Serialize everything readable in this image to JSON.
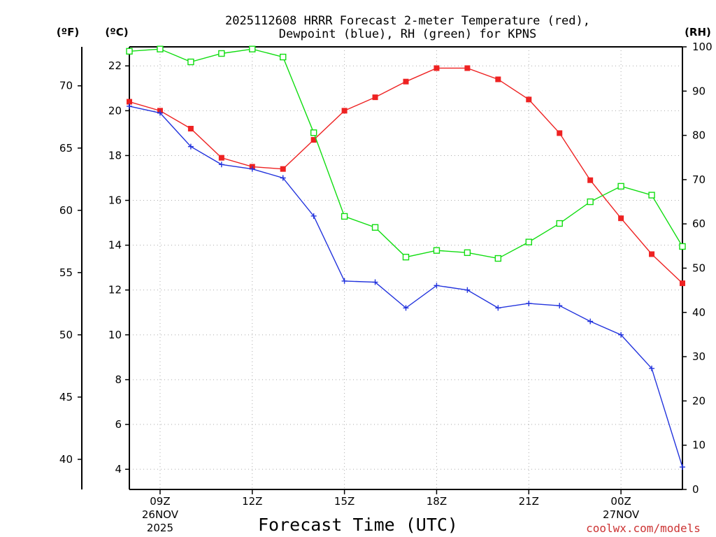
{
  "chart_data": {
    "type": "line",
    "title_line1": "2025112608 HRRR Forecast 2-meter Temperature (red),",
    "title_line2": "Dewpoint (blue), RH (green) for KPNS",
    "xlabel": "Forecast Time (UTC)",
    "credit": "coolwx.com/models",
    "units": {
      "fahrenheit": "(ºF)",
      "celsius": "(ºC)",
      "rh": "(RH)"
    },
    "x": [
      8,
      9,
      10,
      11,
      12,
      13,
      14,
      15,
      16,
      17,
      18,
      19,
      20,
      21,
      22,
      23,
      24,
      25,
      26
    ],
    "xlim": [
      8,
      26
    ],
    "x_ticks": [
      {
        "x": 9,
        "label": "09Z",
        "sub1": "26NOV",
        "sub2": "2025"
      },
      {
        "x": 12,
        "label": "12Z",
        "sub1": "",
        "sub2": ""
      },
      {
        "x": 15,
        "label": "15Z",
        "sub1": "",
        "sub2": ""
      },
      {
        "x": 18,
        "label": "18Z",
        "sub1": "",
        "sub2": ""
      },
      {
        "x": 21,
        "label": "21Z",
        "sub1": "",
        "sub2": ""
      },
      {
        "x": 24,
        "label": "00Z",
        "sub1": "27NOV",
        "sub2": ""
      }
    ],
    "ylim_c": [
      3.1,
      22.85
    ],
    "y_ticks_c": [
      4,
      6,
      8,
      10,
      12,
      14,
      16,
      18,
      20,
      22
    ],
    "y_ticks_f": [
      40,
      45,
      50,
      55,
      60,
      65,
      70
    ],
    "ylim_rh": [
      0,
      100
    ],
    "y_ticks_rh": [
      0,
      10,
      20,
      30,
      40,
      50,
      60,
      70,
      80,
      90,
      100
    ],
    "colors": {
      "temperature": "#ee2222",
      "dewpoint": "#2233dd",
      "rh": "#11dd11",
      "credit": "#cc3333"
    },
    "series": [
      {
        "name": "Temperature",
        "axis": "c",
        "values": [
          20.4,
          20.0,
          19.2,
          17.9,
          17.5,
          17.4,
          18.7,
          20.0,
          20.6,
          21.3,
          21.9,
          21.9,
          21.4,
          20.5,
          19.0,
          16.9,
          15.2,
          13.6,
          12.3
        ]
      },
      {
        "name": "Dewpoint",
        "axis": "c",
        "values": [
          20.2,
          19.9,
          18.4,
          17.6,
          17.4,
          17.0,
          15.3,
          12.4,
          12.35,
          11.2,
          12.2,
          12.0,
          11.2,
          11.4,
          11.3,
          10.6,
          10.0,
          8.5,
          4.1
        ]
      },
      {
        "name": "RH",
        "axis": "rh",
        "values": [
          99.0,
          99.5,
          96.6,
          98.5,
          99.5,
          97.7,
          80.6,
          61.7,
          59.2,
          52.5,
          54.0,
          53.5,
          52.2,
          55.9,
          60.1,
          65.0,
          68.5,
          66.5,
          54.9
        ]
      }
    ]
  }
}
